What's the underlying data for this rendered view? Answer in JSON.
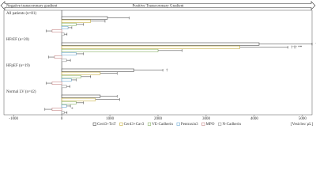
{
  "chart_data": {
    "type": "bar",
    "orientation": "horizontal",
    "header_left": "Negative transcoronary gradient",
    "header_right": "Positive Transcoronary Gradient",
    "categories": [
      "All patients (n=81)",
      "HFrEF (n=20)",
      "HFpEF (n=19)",
      "Normal LV (n=42)"
    ],
    "series": [
      {
        "name": "Cer43+TnT",
        "color": "#4d4d4d",
        "values": [
          950,
          4100,
          1500,
          800
        ],
        "errors": [
          450,
          1100,
          600,
          350
        ]
      },
      {
        "name": "Cer43+Cav3",
        "color": "#c8b040",
        "values": [
          600,
          3700,
          800,
          700
        ],
        "errors": [
          300,
          1000,
          350,
          500
        ]
      },
      {
        "name": "VE-Cadherin",
        "color": "#8ab56a",
        "values": [
          300,
          2000,
          400,
          300
        ],
        "errors": [
          150,
          500,
          200,
          150
        ]
      },
      {
        "name": "Pentraxin3",
        "color": "#74aed6",
        "values": [
          130,
          300,
          200,
          100
        ],
        "errors": [
          80,
          150,
          100,
          80
        ]
      },
      {
        "name": "MPO",
        "color": "#c98a8a",
        "values": [
          -200,
          -150,
          -200,
          -200
        ],
        "errors": [
          120,
          120,
          120,
          150
        ]
      },
      {
        "name": "N-Cadherin",
        "color": "#9a9a9a",
        "values": [
          50,
          100,
          100,
          50
        ],
        "errors": [
          60,
          80,
          70,
          60
        ]
      }
    ],
    "annotations": [
      "††† ***",
      "††† **",
      "†",
      "*"
    ],
    "xlabel": "[Vesicles/ μL]",
    "xlim": [
      -1200,
      5200
    ],
    "xticks": [
      -1000,
      0,
      1000,
      2000,
      3000,
      4000,
      5000
    ]
  }
}
